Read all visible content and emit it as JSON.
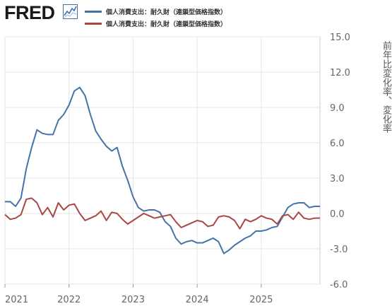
{
  "header": {
    "logo_text": "FRED",
    "logo_icon": "line-chart-icon"
  },
  "colors": {
    "series_blue": "#4572a7",
    "series_red": "#aa4643",
    "grid": "#e6e6e6",
    "axis_text": "#666666"
  },
  "chart_data": {
    "type": "line",
    "title": "",
    "xlabel": "",
    "ylabel": "前年比変化率、変化率",
    "ylim": [
      -6.0,
      15.0
    ],
    "xlim": [
      "2021-01",
      "2025-12"
    ],
    "yticks": [
      "-6.0",
      "-3.0",
      "0.0",
      "3.0",
      "6.0",
      "9.0",
      "12.0",
      "15.0"
    ],
    "xticks": [
      "2021",
      "2022",
      "2023",
      "2024",
      "2025"
    ],
    "grid": true,
    "legend_position": "top",
    "series": [
      {
        "name": "個人消費支出：耐久財（連鎖型価格指数）",
        "color": "#4572a7",
        "x": [
          "2021-01",
          "2021-02",
          "2021-03",
          "2021-04",
          "2021-05",
          "2021-06",
          "2021-07",
          "2021-08",
          "2021-09",
          "2021-10",
          "2021-11",
          "2021-12",
          "2022-01",
          "2022-02",
          "2022-03",
          "2022-04",
          "2022-05",
          "2022-06",
          "2022-07",
          "2022-08",
          "2022-09",
          "2022-10",
          "2022-11",
          "2022-12",
          "2023-01",
          "2023-02",
          "2023-03",
          "2023-04",
          "2023-05",
          "2023-06",
          "2023-07",
          "2023-08",
          "2023-09",
          "2023-10",
          "2023-11",
          "2023-12",
          "2024-01",
          "2024-02",
          "2024-03",
          "2024-04",
          "2024-05",
          "2024-06",
          "2024-07",
          "2024-08",
          "2024-09",
          "2024-10",
          "2024-11",
          "2024-12",
          "2025-01",
          "2025-02",
          "2025-03",
          "2025-04",
          "2025-05",
          "2025-06",
          "2025-07",
          "2025-08",
          "2025-09",
          "2025-10",
          "2025-11",
          "2025-12"
        ],
        "values": [
          1.0,
          1.0,
          0.6,
          1.3,
          3.8,
          5.6,
          7.1,
          6.8,
          6.7,
          6.7,
          7.9,
          8.4,
          9.2,
          10.4,
          10.7,
          10.0,
          8.4,
          7.0,
          6.3,
          5.7,
          5.3,
          5.6,
          4.0,
          2.8,
          1.4,
          0.5,
          0.2,
          0.3,
          0.3,
          0.1,
          -0.7,
          -1.1,
          -2.1,
          -2.6,
          -2.4,
          -2.3,
          -2.5,
          -2.5,
          -2.3,
          -2.1,
          -2.4,
          -3.4,
          -3.1,
          -2.7,
          -2.4,
          -2.1,
          -1.9,
          -1.5,
          -1.5,
          -1.4,
          -1.2,
          -1.1,
          -0.3,
          0.5,
          0.8,
          0.9,
          0.9,
          0.5,
          0.6,
          0.6
        ]
      },
      {
        "name": "個人消費支出：耐久財（連鎖型価格指数）",
        "color": "#aa4643",
        "x": [
          "2021-01",
          "2021-02",
          "2021-03",
          "2021-04",
          "2021-05",
          "2021-06",
          "2021-07",
          "2021-08",
          "2021-09",
          "2021-10",
          "2021-11",
          "2021-12",
          "2022-01",
          "2022-02",
          "2022-03",
          "2022-04",
          "2022-05",
          "2022-06",
          "2022-07",
          "2022-08",
          "2022-09",
          "2022-10",
          "2022-11",
          "2022-12",
          "2023-01",
          "2023-02",
          "2023-03",
          "2023-04",
          "2023-05",
          "2023-06",
          "2023-07",
          "2023-08",
          "2023-09",
          "2023-10",
          "2023-11",
          "2023-12",
          "2024-01",
          "2024-02",
          "2024-03",
          "2024-04",
          "2024-05",
          "2024-06",
          "2024-07",
          "2024-08",
          "2024-09",
          "2024-10",
          "2024-11",
          "2024-12",
          "2025-01",
          "2025-02",
          "2025-03",
          "2025-04",
          "2025-05",
          "2025-06",
          "2025-07",
          "2025-08",
          "2025-09",
          "2025-10",
          "2025-11",
          "2025-12"
        ],
        "values": [
          -0.1,
          -0.5,
          -0.4,
          -0.1,
          1.2,
          1.3,
          0.9,
          -0.1,
          0.5,
          -0.3,
          0.9,
          0.3,
          0.7,
          0.8,
          0.0,
          -0.6,
          -0.4,
          -0.2,
          0.2,
          -0.6,
          0.1,
          0.0,
          -0.5,
          -0.9,
          -0.6,
          -0.3,
          0.0,
          -0.2,
          -0.4,
          -0.3,
          -0.2,
          -0.1,
          -0.7,
          -1.2,
          -1.0,
          -0.8,
          -0.6,
          -0.7,
          -1.1,
          -1.0,
          -0.3,
          -0.2,
          -0.3,
          -0.6,
          -1.3,
          -0.5,
          -0.7,
          -0.5,
          -0.2,
          -0.4,
          -0.5,
          -0.9,
          -0.2,
          -0.1,
          -0.5,
          0.1,
          -0.4,
          -0.5,
          -0.4,
          -0.4
        ]
      }
    ]
  }
}
